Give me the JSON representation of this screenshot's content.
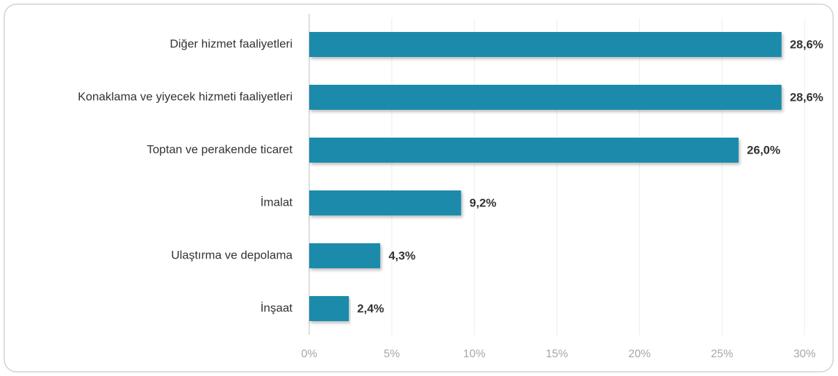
{
  "chart_data": {
    "type": "bar",
    "orientation": "horizontal",
    "categories": [
      "Diğer hizmet faaliyetleri",
      "Konaklama ve yiyecek hizmeti faaliyetleri",
      "Toptan ve perakende ticaret",
      "İmalat",
      "Ulaştırma ve depolama",
      "İnşaat"
    ],
    "values": [
      28.6,
      28.6,
      26.0,
      9.2,
      4.3,
      2.4
    ],
    "value_labels": [
      "28,6%",
      "28,6%",
      "26,0%",
      "9,2%",
      "4,3%",
      "2,4%"
    ],
    "color": "#1e8bab",
    "xlim": [
      0,
      30
    ],
    "xticks": [
      {
        "value": 0,
        "label": "0%"
      },
      {
        "value": 5,
        "label": "5%"
      },
      {
        "value": 10,
        "label": "10%"
      },
      {
        "value": 15,
        "label": "15%"
      },
      {
        "value": 20,
        "label": "20%"
      },
      {
        "value": 25,
        "label": "25%"
      },
      {
        "value": 30,
        "label": "30%"
      }
    ],
    "grid": true
  }
}
